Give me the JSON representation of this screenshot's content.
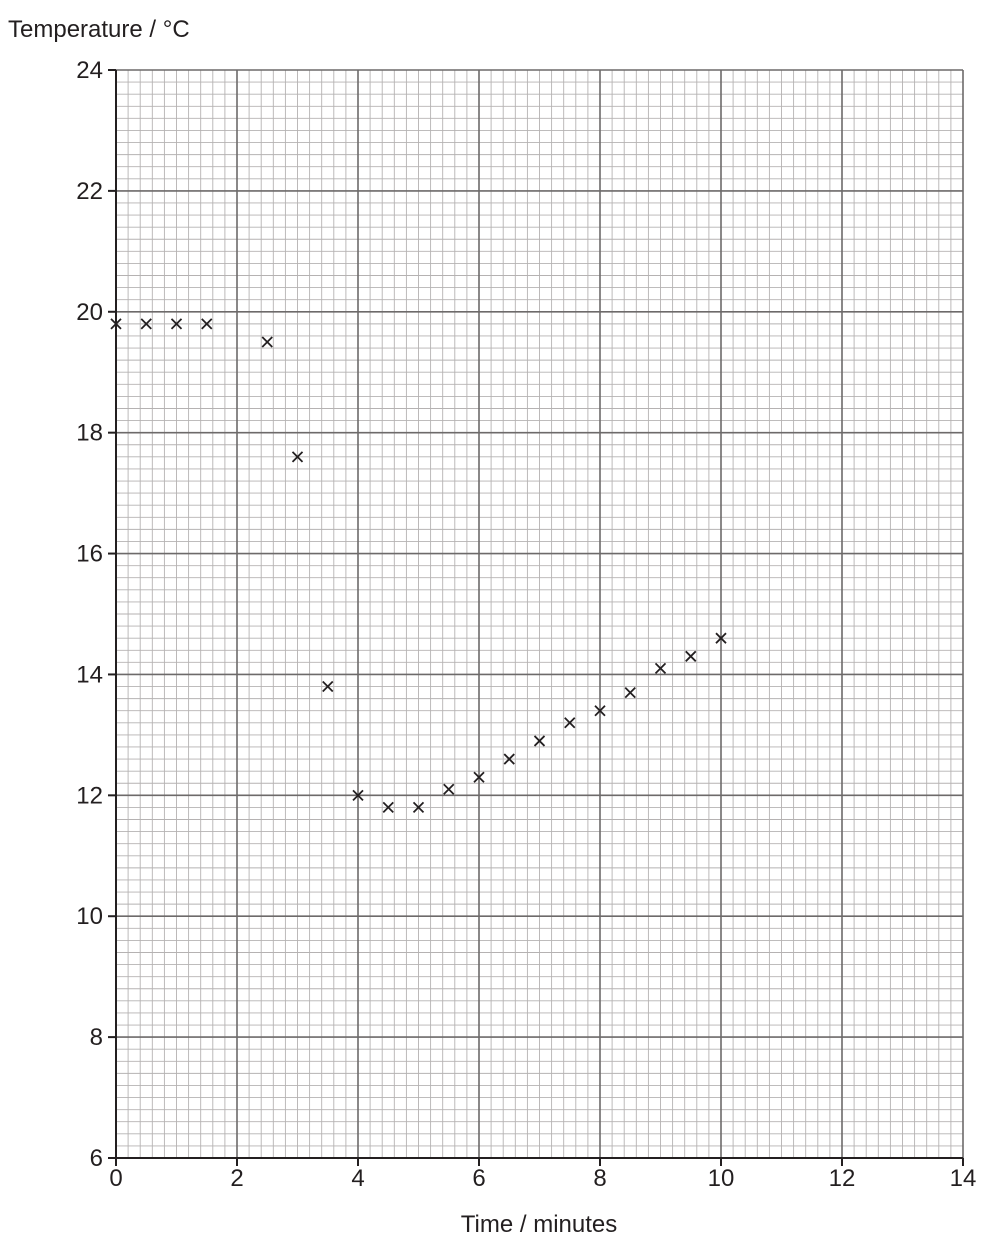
{
  "chart_data": {
    "type": "scatter",
    "xlabel": "Time / minutes",
    "ylabel": "Temperature / °C",
    "xlim": [
      0,
      14
    ],
    "ylim": [
      6,
      24
    ],
    "x_ticks": [
      0,
      2,
      4,
      6,
      8,
      10,
      12,
      14
    ],
    "y_ticks": [
      6,
      8,
      10,
      12,
      14,
      16,
      18,
      20,
      22,
      24
    ],
    "x_minor_per_major": 10,
    "y_minor_per_major": 10,
    "grid": true,
    "marker": "x",
    "points": [
      {
        "x": 0,
        "y": 19.8
      },
      {
        "x": 0.5,
        "y": 19.8
      },
      {
        "x": 1,
        "y": 19.8
      },
      {
        "x": 1.5,
        "y": 19.8
      },
      {
        "x": 2.5,
        "y": 19.5
      },
      {
        "x": 3,
        "y": 17.6
      },
      {
        "x": 3.5,
        "y": 13.8
      },
      {
        "x": 4,
        "y": 12.0
      },
      {
        "x": 4.5,
        "y": 11.8
      },
      {
        "x": 5,
        "y": 11.8
      },
      {
        "x": 5.5,
        "y": 12.1
      },
      {
        "x": 6,
        "y": 12.3
      },
      {
        "x": 6.5,
        "y": 12.6
      },
      {
        "x": 7,
        "y": 12.9
      },
      {
        "x": 7.5,
        "y": 13.2
      },
      {
        "x": 8,
        "y": 13.4
      },
      {
        "x": 8.5,
        "y": 13.7
      },
      {
        "x": 9,
        "y": 14.1
      },
      {
        "x": 9.5,
        "y": 14.3
      },
      {
        "x": 10,
        "y": 14.6
      }
    ],
    "colors": {
      "minor_grid": "#b5b2b2",
      "major_grid": "#6d6a6a",
      "axis": "#231f20",
      "marker": "#231f20"
    }
  }
}
